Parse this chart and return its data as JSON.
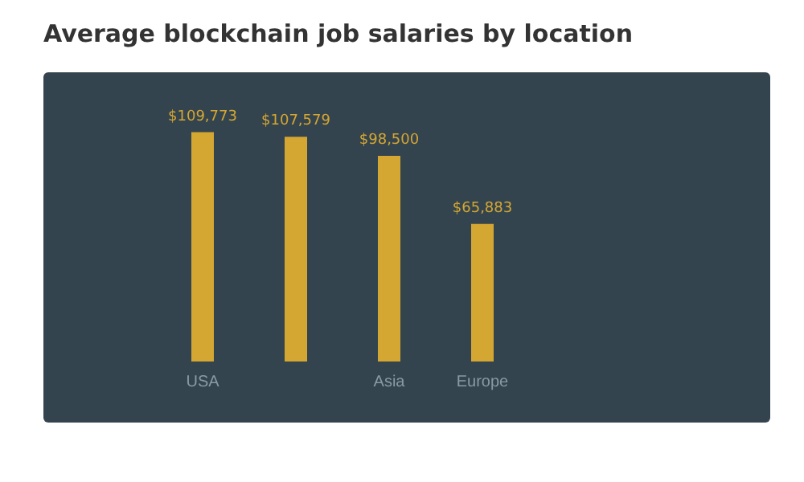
{
  "chart_data": {
    "type": "bar",
    "title": "Average blockchain job salaries by location",
    "categories": [
      "USA",
      null,
      "Asia",
      "Europe"
    ],
    "values": [
      109773,
      107579,
      98500,
      65883
    ],
    "value_labels": [
      "$109,773",
      "$107,579",
      "$98,500",
      "$65,883"
    ],
    "color": "#d4a632"
  }
}
